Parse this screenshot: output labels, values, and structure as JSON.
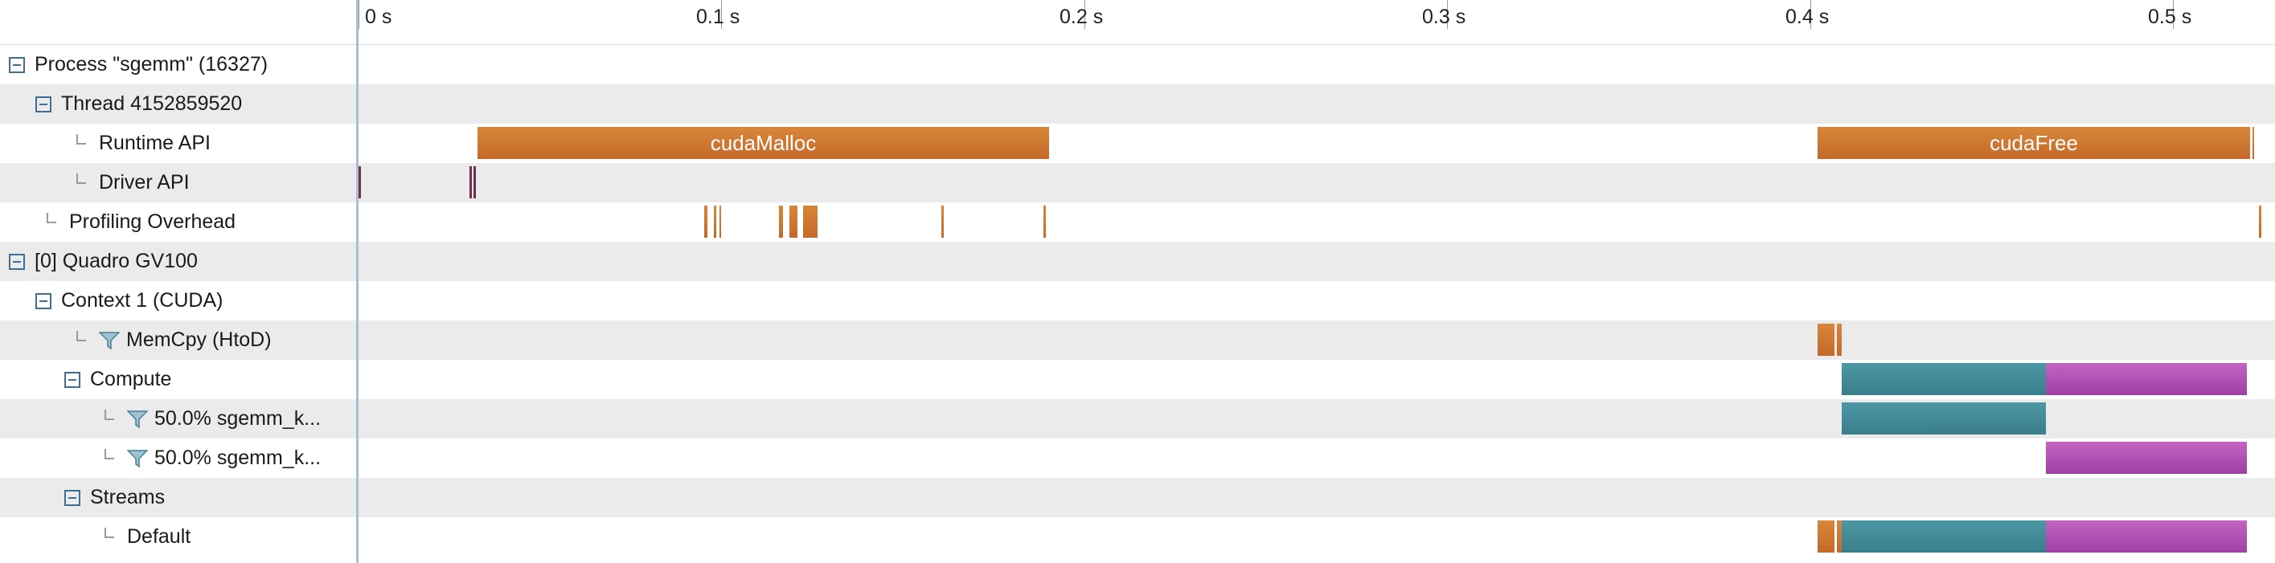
{
  "ruler": {
    "ticks": [
      "0 s",
      "0.1 s",
      "0.2 s",
      "0.3 s",
      "0.4 s",
      "0.5 s"
    ]
  },
  "tree": {
    "rows": [
      {
        "label": "Process \"sgemm\" (16327)",
        "icon": "collapse-icon"
      },
      {
        "label": "Thread 4152859520",
        "icon": "collapse-icon"
      },
      {
        "label": "Runtime API",
        "icon": "tree-elbow"
      },
      {
        "label": "Driver API",
        "icon": "tree-elbow"
      },
      {
        "label": "Profiling Overhead",
        "icon": "tree-elbow"
      },
      {
        "label": "[0] Quadro GV100",
        "icon": "collapse-icon"
      },
      {
        "label": "Context 1 (CUDA)",
        "icon": "collapse-icon"
      },
      {
        "label": "MemCpy (HtoD)",
        "icon": "filter-icon"
      },
      {
        "label": "Compute",
        "icon": "collapse-icon"
      },
      {
        "label": "50.0% sgemm_k...",
        "icon": "filter-icon"
      },
      {
        "label": "50.0% sgemm_k...",
        "icon": "filter-icon"
      },
      {
        "label": "Streams",
        "icon": "collapse-icon"
      },
      {
        "label": "Default",
        "icon": "tree-elbow"
      }
    ]
  },
  "timeline": {
    "bar_labels": {
      "cudaMalloc": "cudaMalloc",
      "cudaFree": "cudaFree"
    }
  },
  "colors": {
    "api_call": "#c96f2d",
    "kernel_a": "#4a94a2",
    "kernel_b": "#b050b3",
    "driver": "#6e2f4a",
    "row_alt": "#ebebeb",
    "divider": "#a9bed3"
  }
}
